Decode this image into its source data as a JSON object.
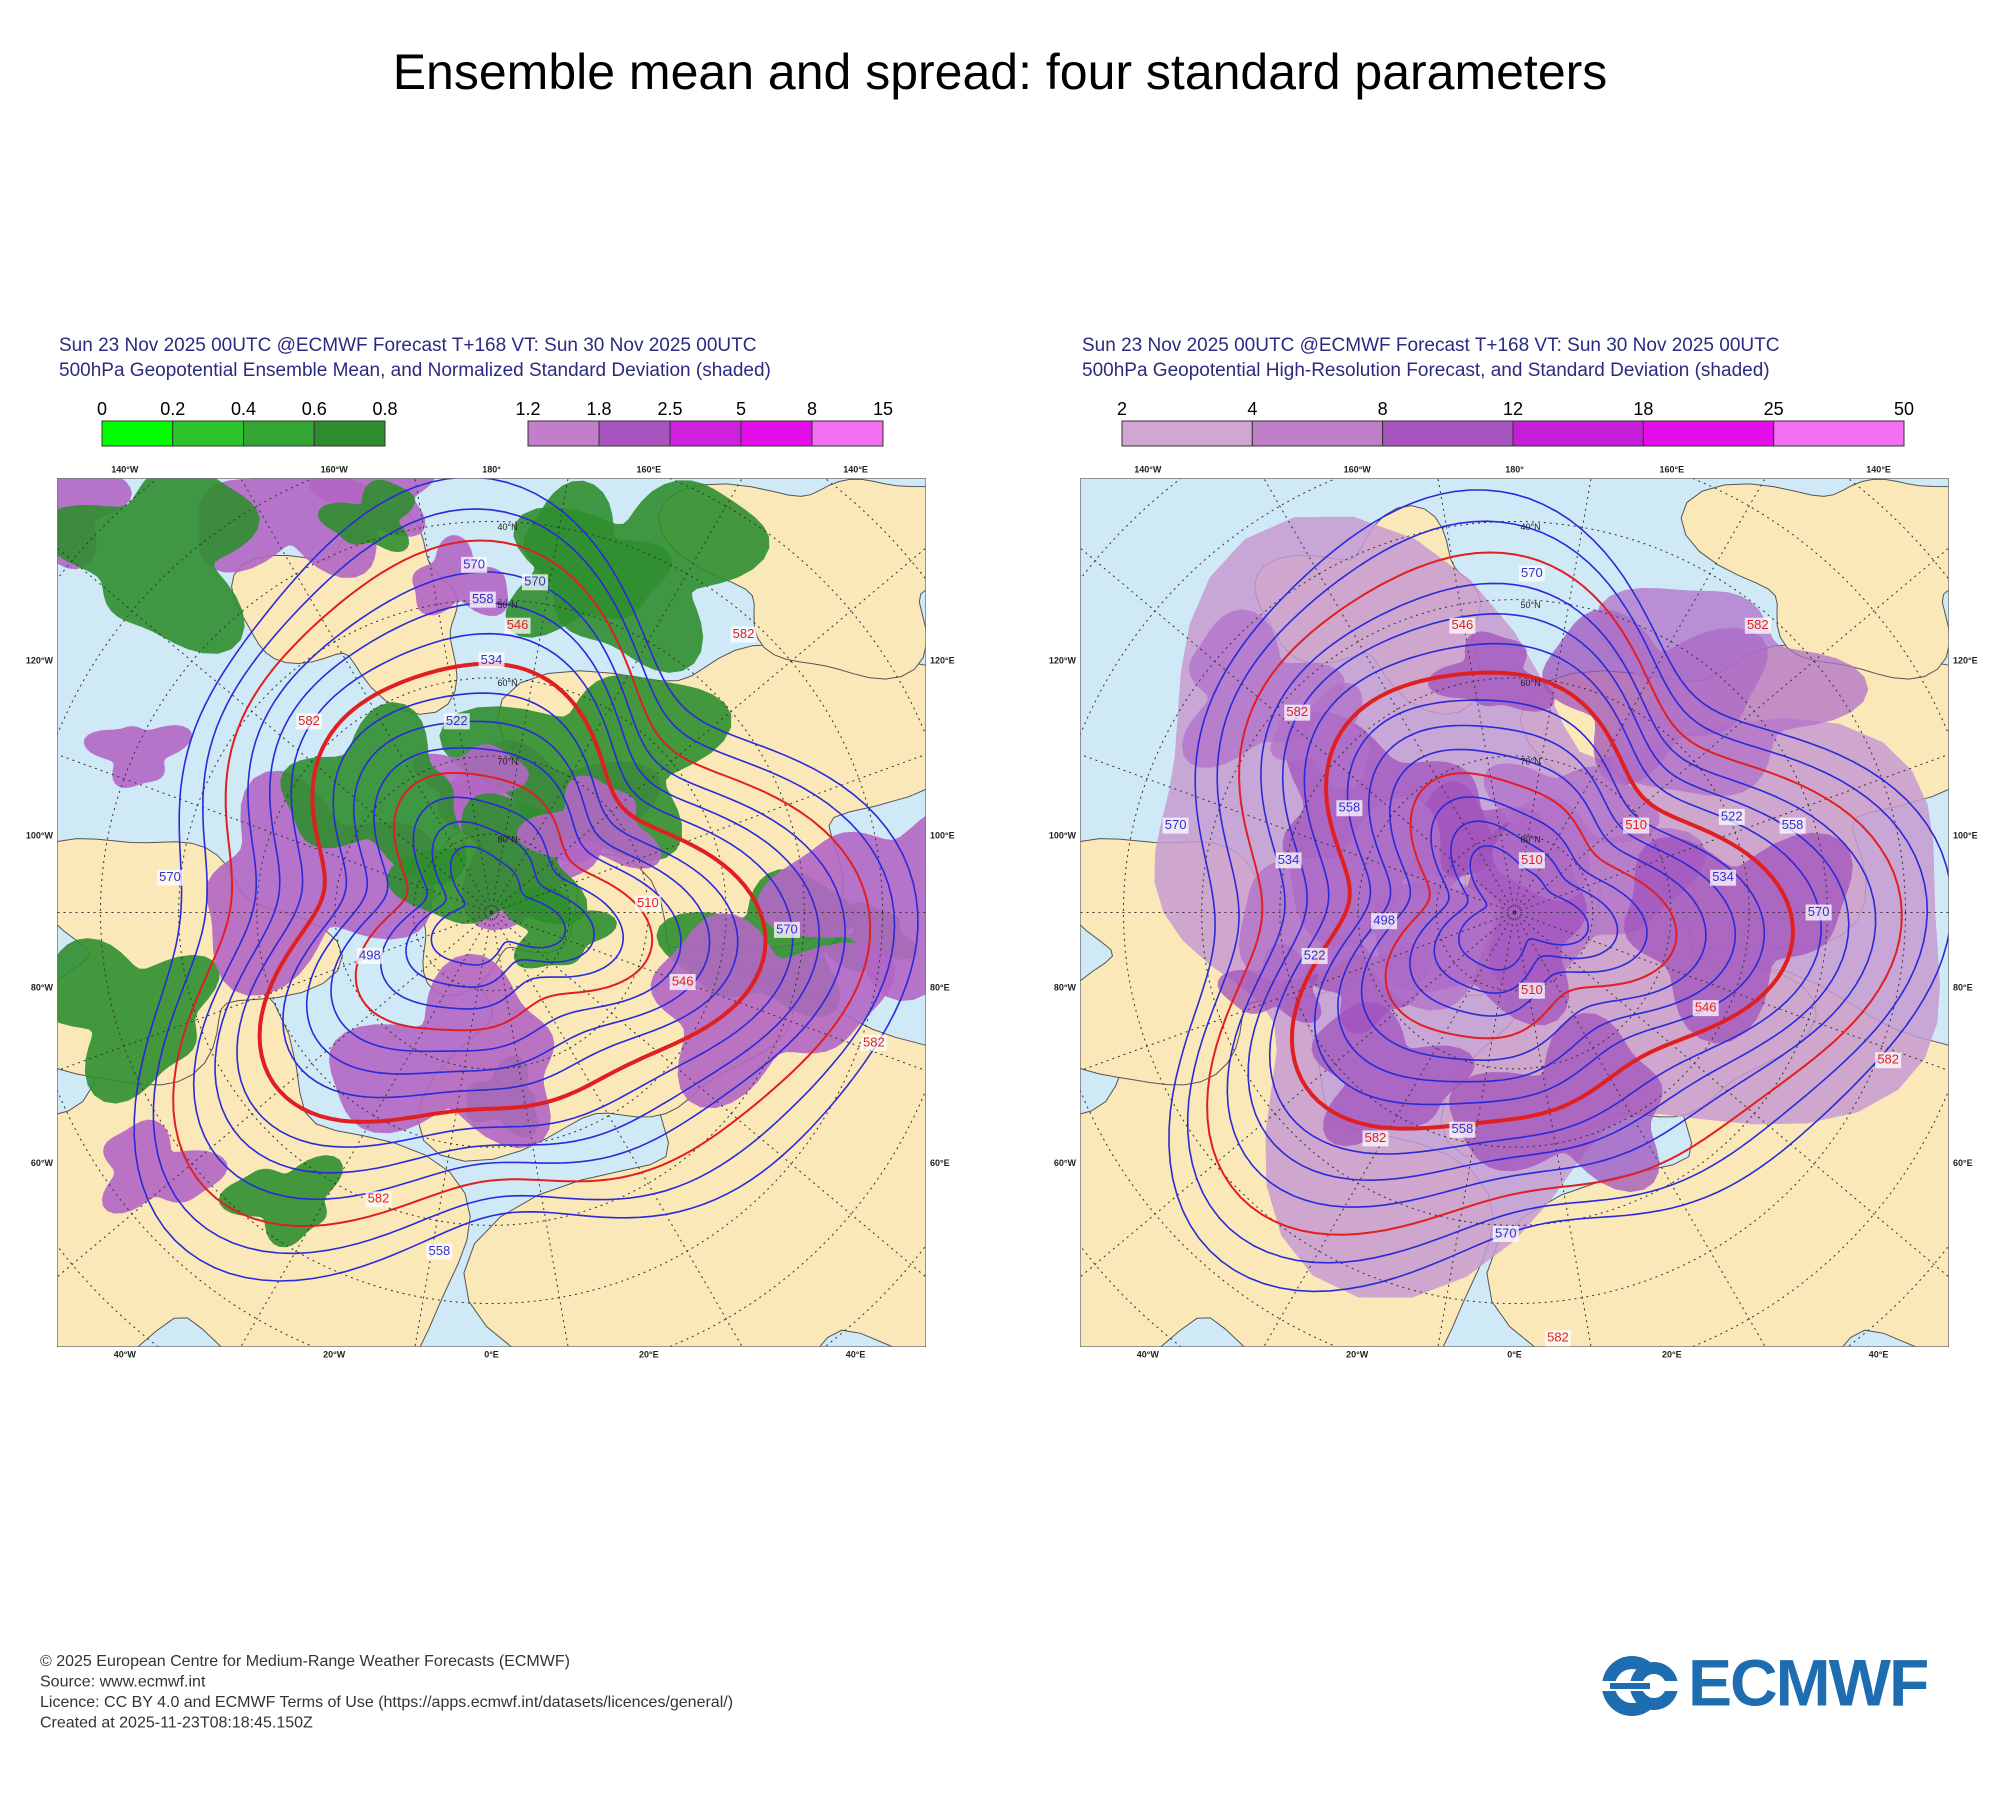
{
  "title": "Ensemble mean and spread: four standard parameters",
  "panels": [
    {
      "header": [
        "Sun 23 Nov 2025 00UTC @ECMWF Forecast T+168 VT: Sun 30 Nov 2025 00UTC",
        "500hPa Geopotential Ensemble Mean, and Normalized Standard Deviation (shaded)"
      ],
      "colorbars": [
        {
          "ticks": [
            0,
            0.2,
            0.4,
            0.6,
            0.8
          ],
          "colors": [
            "#00ff00",
            "#2cc42c",
            "#33a533",
            "#2e8b2e"
          ]
        },
        {
          "ticks": [
            1.2,
            1.8,
            2.5,
            5,
            8,
            15
          ],
          "colors": [
            "#c27ec9",
            "#a854be",
            "#cc22dd",
            "#e40ee9",
            "#f070f0"
          ]
        }
      ],
      "lon_labels": {
        "top": [
          "140°W",
          "160°W",
          "180°",
          "160°E",
          "140°E"
        ],
        "left": [
          "120°W",
          "100°W",
          "80°W",
          "60°W"
        ],
        "right": [
          "120°E",
          "100°E",
          "80°E",
          "60°E"
        ],
        "bottom": [
          "40°W",
          "20°W",
          "0°E",
          "20°E",
          "40°E"
        ]
      },
      "lat_labels": [
        "20°N",
        "30°N",
        "40°N",
        "50°N",
        "60°N",
        "70°N",
        "80°N"
      ],
      "contour_labels": [
        {
          "value": 570,
          "color": "#3030d0"
        },
        {
          "value": 570,
          "color": "#3030d0"
        },
        {
          "value": 558,
          "color": "#3030d0"
        },
        {
          "value": 546,
          "color": "#e02020"
        },
        {
          "value": 534,
          "color": "#3030d0"
        },
        {
          "value": 522,
          "color": "#3030d0"
        },
        {
          "value": 582,
          "color": "#e02020"
        },
        {
          "value": 582,
          "color": "#e02020"
        },
        {
          "value": 510,
          "color": "#e02020"
        },
        {
          "value": 498,
          "color": "#3030d0"
        },
        {
          "value": 546,
          "color": "#e02020"
        },
        {
          "value": 570,
          "color": "#3030d0"
        },
        {
          "value": 582,
          "color": "#e02020"
        },
        {
          "value": 582,
          "color": "#e02020"
        },
        {
          "value": 558,
          "color": "#3030d0"
        },
        {
          "value": 570,
          "color": "#3030d0"
        }
      ]
    },
    {
      "header": [
        "Sun 23 Nov 2025 00UTC @ECMWF Forecast T+168 VT: Sun 30 Nov 2025 00UTC",
        "500hPa Geopotential High-Resolution Forecast, and Standard Deviation (shaded)"
      ],
      "colorbars": [
        {
          "ticks": [
            2,
            4,
            8,
            12,
            18,
            25,
            50
          ],
          "colors": [
            "#d2a6d2",
            "#c07ec8",
            "#a854be",
            "#c41ed8",
            "#e40ee9",
            "#f070f0"
          ]
        }
      ],
      "lon_labels": {
        "top": [
          "140°W",
          "160°W",
          "180°",
          "160°E",
          "140°E"
        ],
        "left": [
          "120°W",
          "100°W",
          "80°W",
          "60°W"
        ],
        "right": [
          "120°E",
          "100°E",
          "80°E",
          "60°E"
        ],
        "bottom": [
          "40°W",
          "20°W",
          "0°E",
          "20°E",
          "40°E"
        ]
      },
      "lat_labels": [
        "20°N",
        "30°N",
        "40°N",
        "50°N",
        "60°N",
        "70°N",
        "80°N"
      ],
      "contour_labels": [
        {
          "value": 570,
          "color": "#3030d0"
        },
        {
          "value": 546,
          "color": "#e02020"
        },
        {
          "value": 582,
          "color": "#e02020"
        },
        {
          "value": 582,
          "color": "#e02020"
        },
        {
          "value": 558,
          "color": "#3030d0"
        },
        {
          "value": 570,
          "color": "#3030d0"
        },
        {
          "value": 534,
          "color": "#3030d0"
        },
        {
          "value": 510,
          "color": "#e02020"
        },
        {
          "value": 510,
          "color": "#e02020"
        },
        {
          "value": 498,
          "color": "#3030d0"
        },
        {
          "value": 522,
          "color": "#3030d0"
        },
        {
          "value": 510,
          "color": "#e02020"
        },
        {
          "value": 546,
          "color": "#e02020"
        },
        {
          "value": 582,
          "color": "#e02020"
        },
        {
          "value": 558,
          "color": "#3030d0"
        },
        {
          "value": 570,
          "color": "#3030d0"
        },
        {
          "value": 582,
          "color": "#e02020"
        },
        {
          "value": 570,
          "color": "#3030d0"
        },
        {
          "value": 582,
          "color": "#e02020"
        },
        {
          "value": 534,
          "color": "#3030d0"
        },
        {
          "value": 522,
          "color": "#3030d0"
        },
        {
          "value": 558,
          "color": "#3030d0"
        }
      ]
    }
  ],
  "footer": [
    "© 2025 European Centre for Medium-Range Weather Forecasts (ECMWF)",
    "Source: www.ecmwf.int",
    "Licence: CC BY 4.0 and ECMWF Terms of Use (https://apps.ecmwf.int/datasets/licences/general/)",
    "Created at 2025-11-23T08:18:45.150Z"
  ],
  "logo": "ECMWF"
}
